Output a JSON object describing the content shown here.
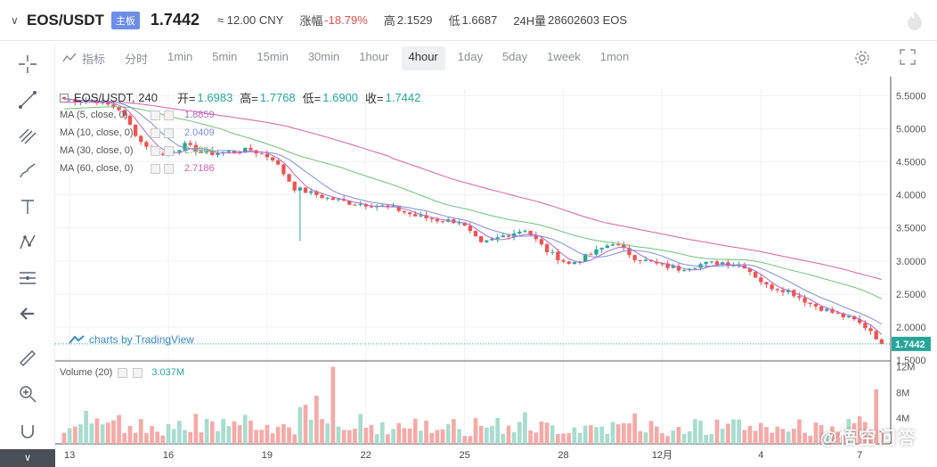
{
  "header": {
    "symbol": "EOS/USDT",
    "board": "主板",
    "price": "1.7442",
    "cny": "≈ 12.00 CNY",
    "change_label": "涨幅",
    "change_value": "-18.79%",
    "high_label": "高",
    "high_value": "2.1529",
    "low_label": "低",
    "low_value": "1.6687",
    "volume_label": "24H量",
    "volume_value": "28602603 EOS"
  },
  "toolbar": {
    "indicator_label": "指标",
    "intervals": [
      "分时",
      "1min",
      "5min",
      "15min",
      "30min",
      "1hour",
      "4hour",
      "1day",
      "5day",
      "1week",
      "1mon"
    ],
    "active_interval": "4hour"
  },
  "legend": {
    "title": "EOS/USDT, 240",
    "open_label": "开=",
    "open": "1.6983",
    "high_label": "高=",
    "high": "1.7768",
    "low_label": "低=",
    "low": "1.6900",
    "close_label": "收=",
    "close": "1.7442",
    "ma": [
      {
        "label": "MA (5, close, 0)",
        "value": "1.8859",
        "color": "#b268c4"
      },
      {
        "label": "MA (10, close, 0)",
        "value": "2.0409",
        "color": "#7c8fd6"
      },
      {
        "label": "MA (30, close, 0)",
        "value": "2.4264",
        "color": "#6fc27a"
      },
      {
        "label": "MA (60, close, 0)",
        "value": "2.7186",
        "color": "#d65fa8"
      }
    ],
    "volume_label": "Volume (20)",
    "volume_value": "3.037M"
  },
  "watermark": "charts by TradingView",
  "brand": "@悟空问答",
  "chart_data": {
    "type": "candlestick",
    "price_axis": {
      "ticks": [
        1.5,
        2.0,
        2.5,
        3.0,
        3.5,
        4.0,
        4.5,
        5.0,
        5.5
      ],
      "tick_labels": [
        "1.5000",
        "2.0000",
        "2.5000",
        "3.0000",
        "3.5000",
        "4.0000",
        "4.5000",
        "5.0000",
        "5.5000"
      ],
      "range": [
        1.5,
        5.6
      ],
      "last_price": 1.7442,
      "last_label": "1.7442"
    },
    "volume_axis": {
      "ticks": [
        4,
        8,
        12
      ],
      "tick_labels": [
        "4M",
        "8M",
        "12M"
      ],
      "range": [
        0,
        12.5
      ]
    },
    "x_ticks": [
      {
        "index": 1,
        "label": "13"
      },
      {
        "index": 19,
        "label": "16"
      },
      {
        "index": 37,
        "label": "19"
      },
      {
        "index": 55,
        "label": "22"
      },
      {
        "index": 73,
        "label": "25"
      },
      {
        "index": 91,
        "label": "28"
      },
      {
        "index": 109,
        "label": "12月"
      },
      {
        "index": 127,
        "label": "4"
      },
      {
        "index": 145,
        "label": "7"
      }
    ],
    "candle_count": 150,
    "anchors": [
      [
        0,
        5.45
      ],
      [
        6,
        5.42
      ],
      [
        10,
        5.3
      ],
      [
        14,
        4.8
      ],
      [
        18,
        4.6
      ],
      [
        22,
        4.75
      ],
      [
        26,
        4.62
      ],
      [
        30,
        4.65
      ],
      [
        34,
        4.68
      ],
      [
        38,
        4.55
      ],
      [
        42,
        4.1
      ],
      [
        48,
        3.95
      ],
      [
        52,
        3.88
      ],
      [
        56,
        3.85
      ],
      [
        60,
        3.8
      ],
      [
        64,
        3.68
      ],
      [
        68,
        3.62
      ],
      [
        72,
        3.6
      ],
      [
        76,
        3.25
      ],
      [
        80,
        3.38
      ],
      [
        84,
        3.48
      ],
      [
        88,
        3.15
      ],
      [
        92,
        2.95
      ],
      [
        96,
        3.1
      ],
      [
        100,
        3.28
      ],
      [
        104,
        3.05
      ],
      [
        108,
        2.95
      ],
      [
        112,
        2.88
      ],
      [
        116,
        2.95
      ],
      [
        120,
        2.98
      ],
      [
        124,
        2.92
      ],
      [
        128,
        2.62
      ],
      [
        132,
        2.55
      ],
      [
        136,
        2.35
      ],
      [
        140,
        2.22
      ],
      [
        144,
        2.1
      ],
      [
        147,
        1.95
      ],
      [
        149,
        1.744
      ]
    ],
    "ma_end": {
      "ma5": 1.8859,
      "ma10": 2.0409,
      "ma30": 2.4264,
      "ma60": 2.7186
    },
    "ma60_start": 5.4,
    "ma30_start": 5.3
  }
}
